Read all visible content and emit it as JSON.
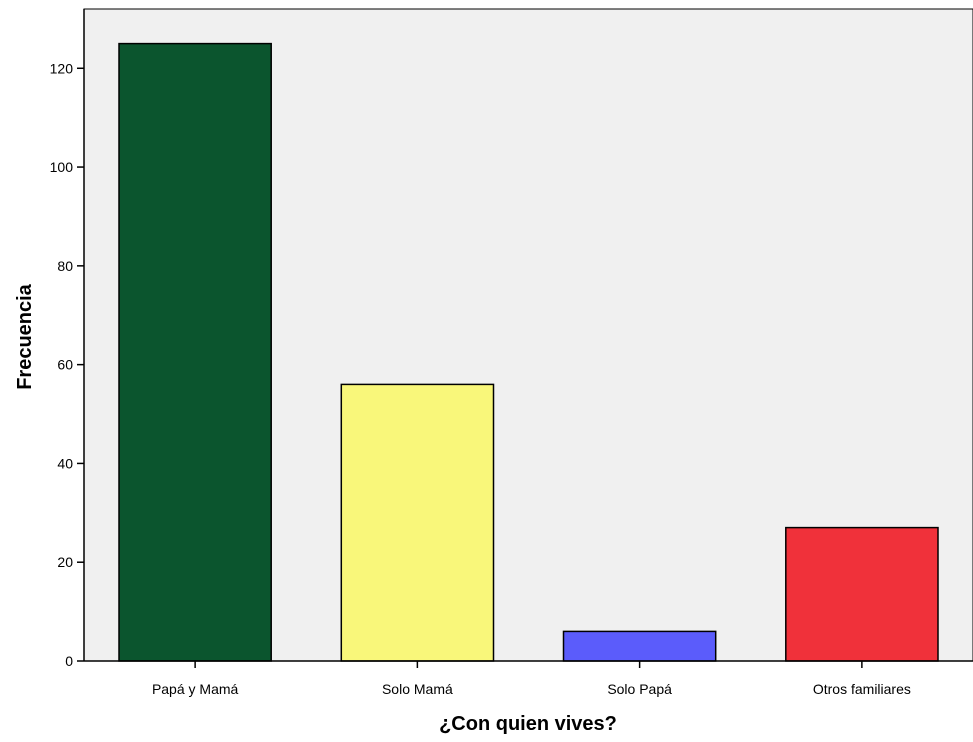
{
  "chart_data": {
    "type": "bar",
    "title": "",
    "xlabel": "¿Con quien vives?",
    "ylabel": "Frecuencia",
    "categories": [
      "Papá y Mamá",
      "Solo Mamá",
      "Solo Papá",
      "Otros familiares"
    ],
    "values": [
      125,
      56,
      6,
      27
    ],
    "colors": [
      "#0b552e",
      "#f9f77a",
      "#5b5cfb",
      "#f0313a"
    ],
    "ylim": [
      0,
      132
    ],
    "yticks": [
      0,
      20,
      40,
      60,
      80,
      100,
      120
    ],
    "grid": false,
    "legend": "none",
    "plot_background": "#f0f0f0"
  }
}
